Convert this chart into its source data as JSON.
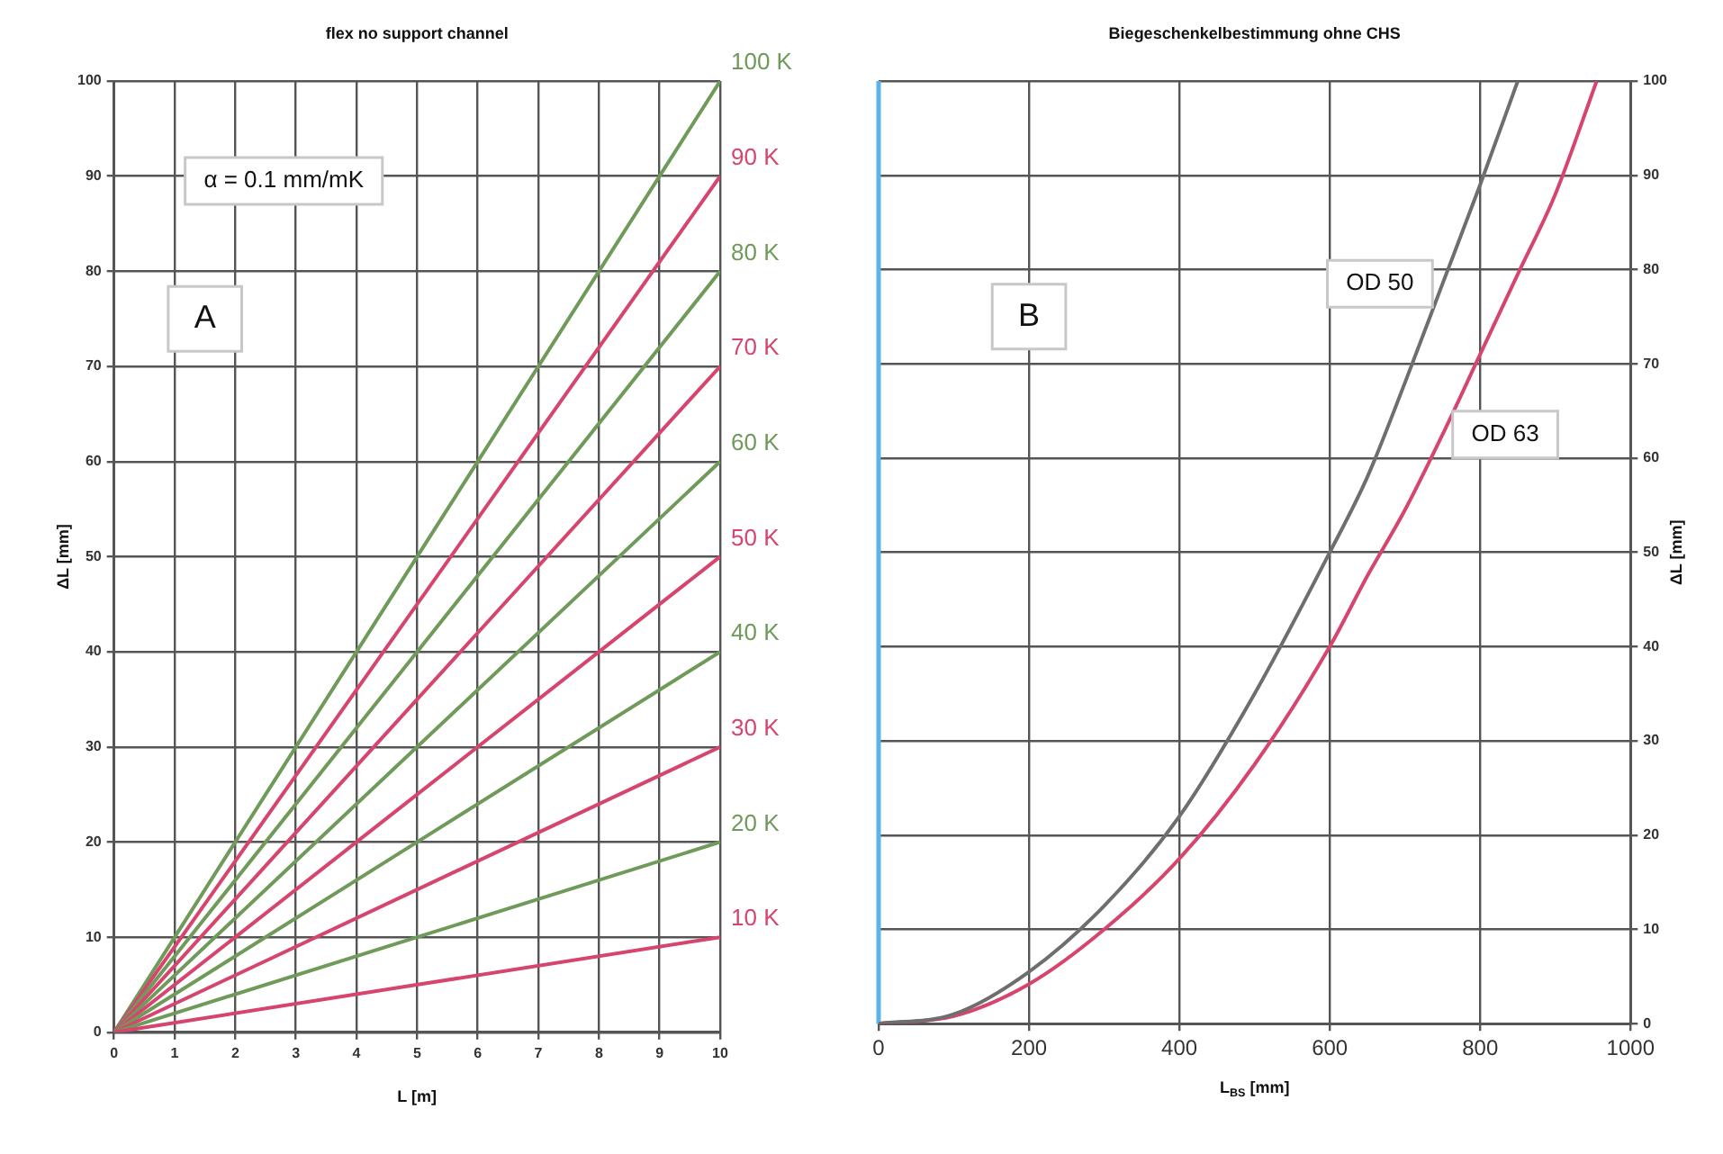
{
  "chart_data": [
    {
      "type": "line",
      "title": "flex no support channel",
      "xlabel": "L [m]",
      "ylabel": "ΔL [mm]",
      "annotations": [
        "α = 0.1 mm/mK",
        "A"
      ],
      "x": [
        0,
        10
      ],
      "series": [
        {
          "name": "10 K",
          "color": "#d6456e",
          "values": [
            0,
            10
          ]
        },
        {
          "name": "20 K",
          "color": "#6f9a5a",
          "values": [
            0,
            20
          ]
        },
        {
          "name": "30 K",
          "color": "#d6456e",
          "values": [
            0,
            30
          ]
        },
        {
          "name": "40 K",
          "color": "#6f9a5a",
          "values": [
            0,
            40
          ]
        },
        {
          "name": "50 K",
          "color": "#d6456e",
          "values": [
            0,
            50
          ]
        },
        {
          "name": "60 K",
          "color": "#6f9a5a",
          "values": [
            0,
            60
          ]
        },
        {
          "name": "70 K",
          "color": "#d6456e",
          "values": [
            0,
            70
          ]
        },
        {
          "name": "80 K",
          "color": "#6f9a5a",
          "values": [
            0,
            80
          ]
        },
        {
          "name": "90 K",
          "color": "#d6456e",
          "values": [
            0,
            90
          ]
        },
        {
          "name": "100 K",
          "color": "#6f9a5a",
          "values": [
            0,
            100
          ]
        }
      ],
      "xlim": [
        0,
        10
      ],
      "xticks": [
        0,
        1,
        2,
        3,
        4,
        5,
        6,
        7,
        8,
        9,
        10
      ],
      "ylim": [
        0,
        100
      ],
      "yticks": [
        0,
        10,
        20,
        30,
        40,
        50,
        60,
        70,
        80,
        90,
        100
      ],
      "grid": true,
      "marker": "none",
      "line_style": "solid"
    },
    {
      "type": "line",
      "title": "Biegeschenkelbestimmung ohne CHS",
      "xlabel": "L$_{BS}$ [mm]",
      "ylabel": "ΔL [mm]",
      "annotations": [
        "B"
      ],
      "series": [
        {
          "name": "OD 50",
          "color": "#6e6e6e",
          "x": [
            0,
            100,
            200,
            300,
            400,
            500,
            600,
            650,
            700,
            750,
            800,
            850
          ],
          "values": [
            0,
            1,
            5.5,
            12.5,
            22,
            35,
            50,
            58,
            68,
            78.5,
            89,
            100
          ]
        },
        {
          "name": "OD 63",
          "color": "#d6456e",
          "x": [
            0,
            100,
            200,
            300,
            400,
            500,
            600,
            650,
            700,
            750,
            800,
            850,
            900,
            955
          ],
          "values": [
            0,
            0.8,
            4.2,
            10,
            17.5,
            27.5,
            40,
            47.5,
            54.5,
            62.5,
            71,
            79.5,
            88,
            100
          ]
        }
      ],
      "ref_lines": [
        {
          "axis": "x",
          "value": 0,
          "color": "#5ab4e5"
        }
      ],
      "xlim": [
        0,
        1000
      ],
      "xticks": [
        0,
        200,
        400,
        600,
        800,
        1000
      ],
      "ylim": [
        0,
        100
      ],
      "yticks": [
        0,
        10,
        20,
        30,
        40,
        50,
        60,
        70,
        80,
        90,
        100
      ],
      "grid": true,
      "marker": "none",
      "line_style": "solid"
    }
  ]
}
